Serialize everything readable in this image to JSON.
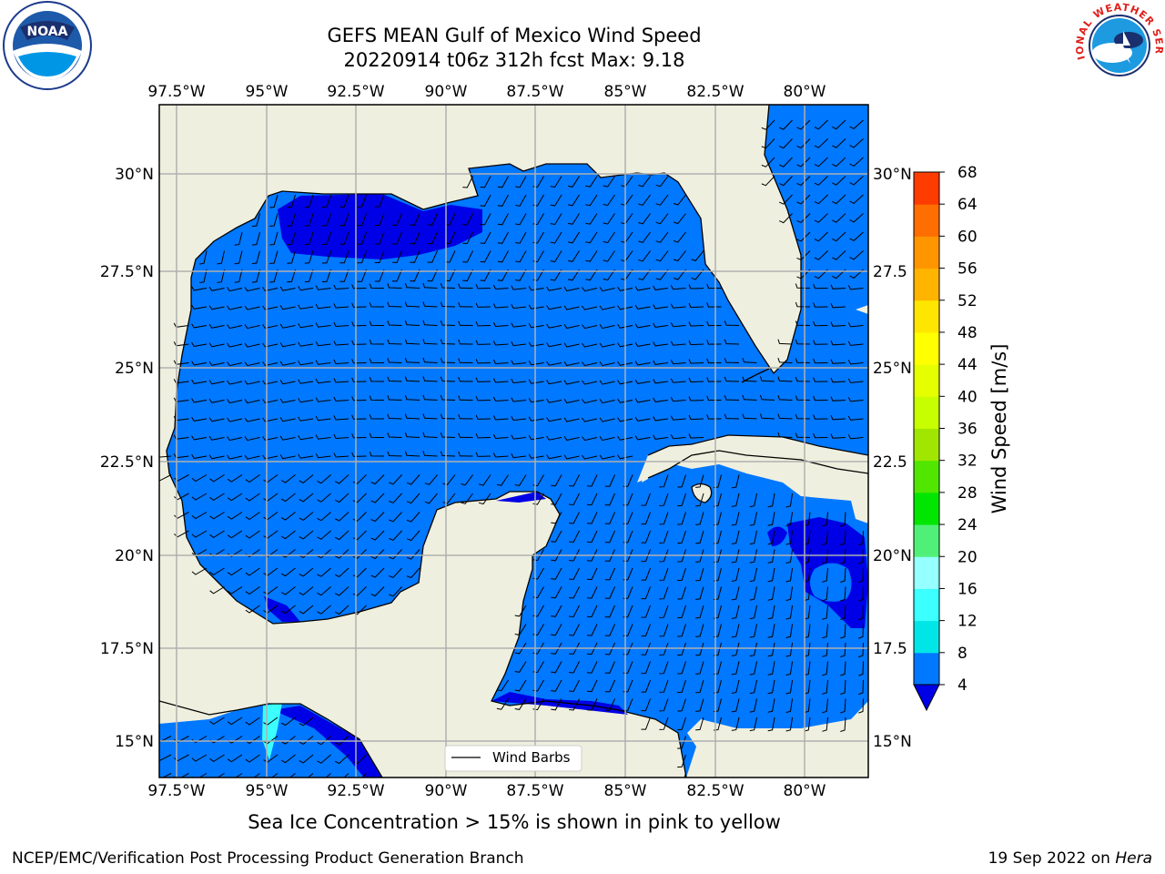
{
  "title": {
    "line1": "GEFS MEAN Gulf of Mexico Wind Speed",
    "line2": "20220914 t06z 312h fcst   Max: 9.18"
  },
  "footer": {
    "note": "Sea Ice Concentration > 15% is shown in pink to yellow",
    "credit": "NCEP/EMC/Verification Post Processing Product Generation Branch",
    "date_prefix": "19 Sep 2022 on ",
    "date_machine": "Hera"
  },
  "logos": {
    "left": "noara-logo",
    "left_text": "NOAA",
    "right": "nws-logo",
    "right_text": "NATIONAL WEATHER SERVICE"
  },
  "map": {
    "lon_labels": [
      "97.5°W",
      "95°W",
      "92.5°W",
      "90°W",
      "87.5°W",
      "85°W",
      "82.5°W",
      "80°W"
    ],
    "lat_labels": [
      "30°N",
      "27.5°N",
      "25°N",
      "22.5°N",
      "20°N",
      "17.5°N",
      "15°N"
    ],
    "right_lat_labels": [
      "30°N",
      "27.5",
      "25°N",
      "22.5",
      "20°N",
      "17.5",
      "15°N"
    ],
    "lon_range": [
      -98,
      -78.2
    ],
    "lat_range": [
      14,
      31.6
    ],
    "land_color": "#efefdf",
    "ocean_color": "#0078ff",
    "low_wind_color": "#0000e6",
    "legend_label": "Wind Barbs"
  },
  "colorbar": {
    "label": "Wind Speed [m/s]",
    "ticks": [
      "4",
      "8",
      "12",
      "16",
      "20",
      "24",
      "28",
      "32",
      "36",
      "40",
      "44",
      "48",
      "52",
      "56",
      "60",
      "64",
      "68"
    ],
    "colors": [
      "#0078ff",
      "#00e6e6",
      "#3cffff",
      "#96ffff",
      "#50f078",
      "#00e600",
      "#50e600",
      "#a0e600",
      "#c8ff00",
      "#e6ff00",
      "#ffff00",
      "#ffe600",
      "#ffb400",
      "#ff9600",
      "#ff6e00",
      "#ff3c00",
      "#ff0000"
    ],
    "under_color": "#0000e6"
  }
}
